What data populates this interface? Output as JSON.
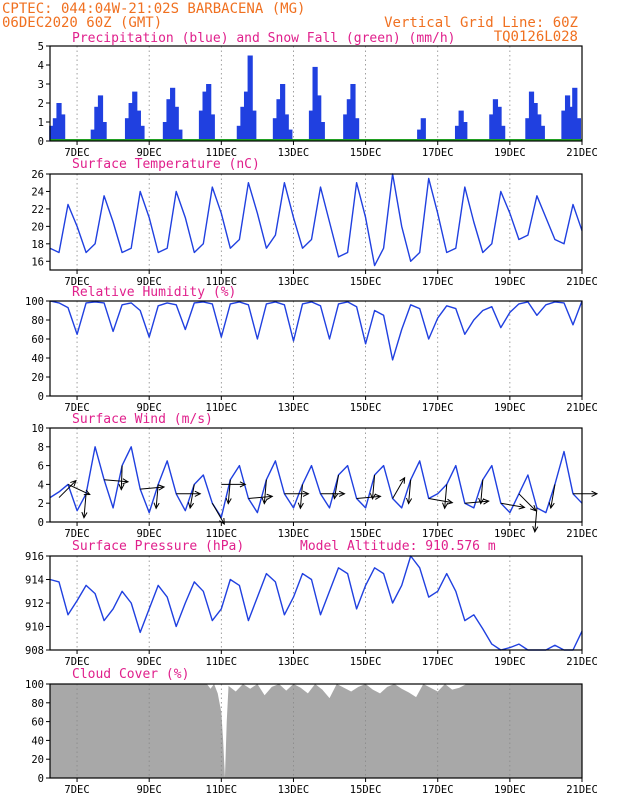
{
  "header": {
    "line1_left": "CPTEC:   044:04W-21:02S  BARBACENA (MG)",
    "line2_left": "06DEC2020 60Z (GMT)",
    "line2_right": "Vertical Grid Line: 60Z",
    "line3_right": "TQ0126L028"
  },
  "colors": {
    "header": "#f07020",
    "title": "#e0208c",
    "line": "#2040e0",
    "bars": "#2040e0",
    "snow": "#20a020",
    "cloud": "#a8a8a8",
    "grid": "#888888"
  },
  "x_axis": {
    "start_day": 6.25,
    "end_day": 21,
    "date_labels": [
      {
        "day": 7,
        "label": "7DEC"
      },
      {
        "day": 9,
        "label": "9DEC"
      },
      {
        "day": 11,
        "label": "11DEC"
      },
      {
        "day": 13,
        "label": "13DEC"
      },
      {
        "day": 15,
        "label": "15DEC"
      },
      {
        "day": 17,
        "label": "17DEC"
      },
      {
        "day": 19,
        "label": "19DEC"
      },
      {
        "day": 21,
        "label": "21DEC"
      }
    ]
  },
  "chart_data": [
    {
      "id": "precip",
      "type": "bar",
      "title": "Precipitation (blue) and Snow Fall (green) (mm/h)",
      "ylim": [
        0,
        5
      ],
      "yticks": [
        0,
        1,
        2,
        3,
        4,
        5
      ],
      "series": [
        {
          "name": "Precipitation",
          "day": [
            6.3,
            6.4,
            6.5,
            6.6,
            7.45,
            7.55,
            7.65,
            7.75,
            8.4,
            8.5,
            8.6,
            8.7,
            8.8,
            9.45,
            9.55,
            9.65,
            9.75,
            9.85,
            10.45,
            10.55,
            10.65,
            10.75,
            11.5,
            11.6,
            11.7,
            11.8,
            11.9,
            12.5,
            12.6,
            12.7,
            12.8,
            12.9,
            13.5,
            13.6,
            13.7,
            13.8,
            14.45,
            14.55,
            14.65,
            14.75,
            16.5,
            16.6,
            17.55,
            17.65,
            17.75,
            18.5,
            18.6,
            18.7,
            18.8,
            19.5,
            19.6,
            19.7,
            19.8,
            19.9,
            20.5,
            20.6,
            20.7,
            20.8,
            20.9
          ],
          "values": [
            0.8,
            1.2,
            2.0,
            1.4,
            0.6,
            1.8,
            2.4,
            1.0,
            1.2,
            2.0,
            2.6,
            1.6,
            0.8,
            1.0,
            2.2,
            2.8,
            1.8,
            0.6,
            1.6,
            2.6,
            3.0,
            1.4,
            0.8,
            1.8,
            2.6,
            4.5,
            1.6,
            1.2,
            2.2,
            3.0,
            1.4,
            0.6,
            1.6,
            3.9,
            2.4,
            1.0,
            1.4,
            2.2,
            3.0,
            1.2,
            0.6,
            1.2,
            0.8,
            1.6,
            1.0,
            1.4,
            2.2,
            1.8,
            0.8,
            1.2,
            2.6,
            2.0,
            1.4,
            0.8,
            1.6,
            2.4,
            1.8,
            2.8,
            1.2
          ]
        },
        {
          "name": "Snow Fall",
          "day": [
            6.25,
            21
          ],
          "values": [
            0,
            0
          ]
        }
      ]
    },
    {
      "id": "temperature",
      "type": "line",
      "title": "Surface Temperature (nC)",
      "ylim": [
        15,
        26
      ],
      "yticks": [
        16,
        18,
        20,
        22,
        24,
        26
      ],
      "day": [
        6.25,
        6.5,
        6.75,
        7.0,
        7.25,
        7.5,
        7.75,
        8.0,
        8.25,
        8.5,
        8.75,
        9.0,
        9.25,
        9.5,
        9.75,
        10.0,
        10.25,
        10.5,
        10.75,
        11.0,
        11.25,
        11.5,
        11.75,
        12.0,
        12.25,
        12.5,
        12.75,
        13.0,
        13.25,
        13.5,
        13.75,
        14.0,
        14.25,
        14.5,
        14.75,
        15.0,
        15.25,
        15.5,
        15.75,
        16.0,
        16.25,
        16.5,
        16.75,
        17.0,
        17.25,
        17.5,
        17.75,
        18.0,
        18.25,
        18.5,
        18.75,
        19.0,
        19.25,
        19.5,
        19.75,
        20.0,
        20.25,
        20.5,
        20.75,
        21.0
      ],
      "values": [
        17.5,
        17.0,
        22.5,
        20.0,
        17.0,
        18.0,
        23.5,
        20.5,
        17.0,
        17.5,
        24.0,
        21.0,
        17.0,
        17.5,
        24.0,
        21.0,
        17.0,
        18.0,
        24.5,
        21.5,
        17.5,
        18.5,
        25.0,
        21.5,
        17.5,
        19.0,
        25.0,
        21.0,
        17.5,
        18.5,
        24.5,
        20.5,
        16.5,
        17.0,
        25.0,
        21.0,
        15.5,
        17.5,
        26.5,
        20.0,
        16.0,
        17.0,
        25.5,
        21.5,
        17.0,
        17.5,
        24.5,
        20.5,
        17.0,
        18.0,
        24.0,
        21.5,
        18.5,
        19.0,
        23.5,
        21.0,
        18.5,
        18.0,
        22.5,
        19.5
      ]
    },
    {
      "id": "humidity",
      "type": "line",
      "title": "Relative Humidity (%)",
      "ylim": [
        0,
        100
      ],
      "yticks": [
        0,
        20,
        40,
        60,
        80,
        100
      ],
      "day": [
        6.25,
        6.5,
        6.75,
        7.0,
        7.25,
        7.5,
        7.75,
        8.0,
        8.25,
        8.5,
        8.75,
        9.0,
        9.25,
        9.5,
        9.75,
        10.0,
        10.25,
        10.5,
        10.75,
        11.0,
        11.25,
        11.5,
        11.75,
        12.0,
        12.25,
        12.5,
        12.75,
        13.0,
        13.25,
        13.5,
        13.75,
        14.0,
        14.25,
        14.5,
        14.75,
        15.0,
        15.25,
        15.5,
        15.75,
        16.0,
        16.25,
        16.5,
        16.75,
        17.0,
        17.25,
        17.5,
        17.75,
        18.0,
        18.25,
        18.5,
        18.75,
        19.0,
        19.25,
        19.5,
        19.75,
        20.0,
        20.25,
        20.5,
        20.75,
        21.0
      ],
      "values": [
        100,
        98,
        93,
        65,
        98,
        99,
        98,
        68,
        96,
        98,
        90,
        62,
        95,
        98,
        96,
        70,
        98,
        99,
        97,
        62,
        97,
        99,
        96,
        60,
        97,
        99,
        96,
        58,
        97,
        99,
        95,
        60,
        97,
        99,
        94,
        55,
        90,
        85,
        38,
        70,
        96,
        92,
        60,
        82,
        95,
        92,
        65,
        80,
        90,
        94,
        72,
        88,
        97,
        99,
        85,
        96,
        99,
        98,
        75,
        100
      ]
    },
    {
      "id": "wind",
      "type": "line",
      "title": "Surface Wind (m/s)",
      "ylim": [
        0,
        10
      ],
      "yticks": [
        0,
        2,
        4,
        6,
        8,
        10
      ],
      "day": [
        6.25,
        6.5,
        6.75,
        7.0,
        7.25,
        7.5,
        7.75,
        8.0,
        8.25,
        8.5,
        8.75,
        9.0,
        9.25,
        9.5,
        9.75,
        10.0,
        10.25,
        10.5,
        10.75,
        11.0,
        11.25,
        11.5,
        11.75,
        12.0,
        12.25,
        12.5,
        12.75,
        13.0,
        13.25,
        13.5,
        13.75,
        14.0,
        14.25,
        14.5,
        14.75,
        15.0,
        15.25,
        15.5,
        15.75,
        16.0,
        16.25,
        16.5,
        16.75,
        17.0,
        17.25,
        17.5,
        17.75,
        18.0,
        18.25,
        18.5,
        18.75,
        19.0,
        19.25,
        19.5,
        19.75,
        20.0,
        20.25,
        20.5,
        20.75,
        21.0
      ],
      "values": [
        2.6,
        3.2,
        4.0,
        1.2,
        3.0,
        8.0,
        4.5,
        1.5,
        6.0,
        8.0,
        3.5,
        1.0,
        4.0,
        6.5,
        3.0,
        1.2,
        4.0,
        5.0,
        2.0,
        0.5,
        4.5,
        6.0,
        2.5,
        1.0,
        4.5,
        6.5,
        3.0,
        1.5,
        4.0,
        6.0,
        3.0,
        1.5,
        5.0,
        6.0,
        2.5,
        1.5,
        5.0,
        6.0,
        2.5,
        1.5,
        4.5,
        6.5,
        2.5,
        3.0,
        4.0,
        6.0,
        2.0,
        1.5,
        4.5,
        6.0,
        2.0,
        1.0,
        3.0,
        5.0,
        1.5,
        1.0,
        4.0,
        7.5,
        3.0,
        2.0
      ],
      "arrows": [
        {
          "day": 6.5,
          "v": 2.6,
          "dir_deg": 45
        },
        {
          "day": 6.75,
          "v": 4.0,
          "dir_deg": -25
        },
        {
          "day": 7.25,
          "v": 3.0,
          "dir_deg": -95
        },
        {
          "day": 7.75,
          "v": 4.5,
          "dir_deg": -5
        },
        {
          "day": 8.25,
          "v": 6.0,
          "dir_deg": -92
        },
        {
          "day": 8.75,
          "v": 3.5,
          "dir_deg": 5
        },
        {
          "day": 9.25,
          "v": 4.0,
          "dir_deg": -95
        },
        {
          "day": 9.75,
          "v": 3.0,
          "dir_deg": 0
        },
        {
          "day": 10.25,
          "v": 4.0,
          "dir_deg": -100
        },
        {
          "day": 10.75,
          "v": 2.0,
          "dir_deg": -60
        },
        {
          "day": 11.0,
          "v": 4.0,
          "dir_deg": 0
        },
        {
          "day": 11.25,
          "v": 4.5,
          "dir_deg": -95
        },
        {
          "day": 11.75,
          "v": 2.5,
          "dir_deg": 5
        },
        {
          "day": 12.25,
          "v": 4.5,
          "dir_deg": -95
        },
        {
          "day": 12.75,
          "v": 3.0,
          "dir_deg": 0
        },
        {
          "day": 13.25,
          "v": 4.0,
          "dir_deg": -95
        },
        {
          "day": 13.75,
          "v": 3.0,
          "dir_deg": 0
        },
        {
          "day": 14.25,
          "v": 5.0,
          "dir_deg": -100
        },
        {
          "day": 14.75,
          "v": 2.5,
          "dir_deg": 5
        },
        {
          "day": 15.25,
          "v": 5.0,
          "dir_deg": -95
        },
        {
          "day": 15.75,
          "v": 2.5,
          "dir_deg": 60
        },
        {
          "day": 16.25,
          "v": 4.5,
          "dir_deg": -95
        },
        {
          "day": 16.75,
          "v": 2.5,
          "dir_deg": -10
        },
        {
          "day": 17.25,
          "v": 4.0,
          "dir_deg": -95
        },
        {
          "day": 17.75,
          "v": 2.0,
          "dir_deg": 5
        },
        {
          "day": 18.25,
          "v": 4.5,
          "dir_deg": -95
        },
        {
          "day": 18.75,
          "v": 2.0,
          "dir_deg": -10
        },
        {
          "day": 19.25,
          "v": 3.0,
          "dir_deg": -45
        },
        {
          "day": 19.75,
          "v": 1.5,
          "dir_deg": -95
        },
        {
          "day": 20.25,
          "v": 4.0,
          "dir_deg": -100
        },
        {
          "day": 20.75,
          "v": 3.0,
          "dir_deg": 0
        }
      ]
    },
    {
      "id": "pressure",
      "type": "line",
      "title": "Surface Pressure (hPa)",
      "annotation": "Model Altitude: 910.576 m",
      "ylim": [
        908,
        916
      ],
      "yticks": [
        908,
        910,
        912,
        914,
        916
      ],
      "day": [
        6.25,
        6.5,
        6.75,
        7.0,
        7.25,
        7.5,
        7.75,
        8.0,
        8.25,
        8.5,
        8.75,
        9.0,
        9.25,
        9.5,
        9.75,
        10.0,
        10.25,
        10.5,
        10.75,
        11.0,
        11.25,
        11.5,
        11.75,
        12.0,
        12.25,
        12.5,
        12.75,
        13.0,
        13.25,
        13.5,
        13.75,
        14.0,
        14.25,
        14.5,
        14.75,
        15.0,
        15.25,
        15.5,
        15.75,
        16.0,
        16.25,
        16.5,
        16.75,
        17.0,
        17.25,
        17.5,
        17.75,
        18.0,
        18.25,
        18.5,
        18.75,
        19.0,
        19.25,
        19.5,
        19.75,
        20.0,
        20.25,
        20.5,
        20.75,
        21.0
      ],
      "values": [
        914.0,
        913.8,
        911.0,
        912.2,
        913.5,
        912.8,
        910.5,
        911.5,
        913.0,
        912.0,
        909.5,
        911.5,
        913.5,
        912.5,
        910.0,
        912.0,
        913.8,
        913.0,
        910.5,
        911.5,
        914.0,
        913.5,
        910.5,
        912.5,
        914.5,
        913.8,
        911.0,
        912.5,
        914.5,
        914.0,
        911.0,
        913.0,
        915.0,
        914.5,
        911.5,
        913.5,
        915.0,
        914.5,
        912.0,
        913.5,
        916.0,
        915.0,
        912.5,
        913.0,
        914.5,
        913.0,
        910.5,
        911.0,
        909.8,
        908.5,
        907.8,
        908.2,
        908.5,
        908.0,
        907.6,
        908.0,
        908.4,
        907.7,
        907.9,
        909.6
      ]
    },
    {
      "id": "cloud",
      "type": "area",
      "title": "Cloud Cover (%)",
      "ylim": [
        0,
        100
      ],
      "yticks": [
        0,
        20,
        40,
        60,
        80,
        100
      ],
      "day": [
        6.25,
        10.6,
        10.7,
        10.8,
        10.9,
        11.0,
        11.05,
        11.1,
        11.15,
        11.2,
        11.4,
        11.6,
        11.8,
        12.0,
        12.2,
        12.4,
        12.6,
        12.8,
        13.0,
        13.2,
        13.4,
        13.6,
        13.8,
        14.0,
        14.2,
        14.4,
        14.6,
        14.8,
        15.0,
        15.2,
        15.4,
        15.6,
        15.8,
        16.0,
        16.2,
        16.4,
        16.6,
        16.8,
        17.0,
        17.2,
        17.4,
        17.6,
        17.8,
        18.0,
        21.0
      ],
      "values": [
        100,
        100,
        95,
        100,
        90,
        70,
        40,
        0,
        60,
        98,
        92,
        100,
        95,
        100,
        88,
        97,
        100,
        93,
        100,
        96,
        90,
        100,
        94,
        85,
        100,
        96,
        92,
        97,
        100,
        94,
        90,
        97,
        100,
        95,
        91,
        86,
        100,
        96,
        92,
        100,
        94,
        96,
        100,
        100,
        100
      ]
    }
  ]
}
